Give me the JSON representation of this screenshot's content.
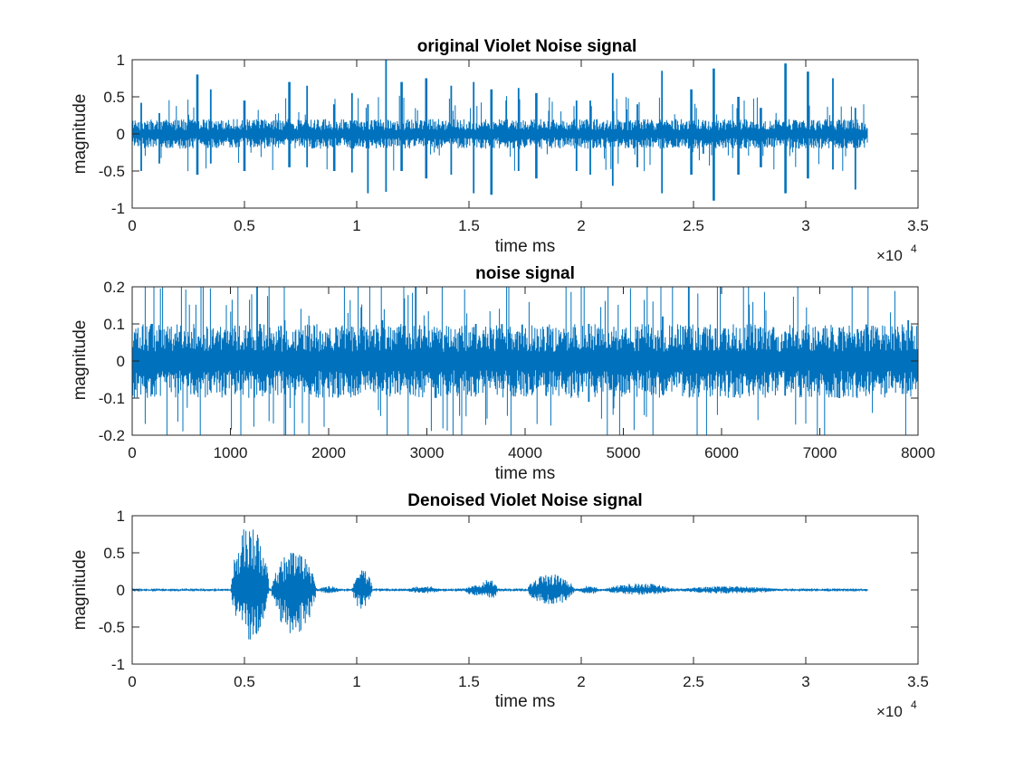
{
  "figure": {
    "line_color": "#0072bd",
    "background": "#ffffff"
  },
  "chart_data": [
    {
      "type": "line",
      "title": "original Violet Noise signal",
      "xlabel": "time ms",
      "ylabel": "magnitude",
      "xlim": [
        0,
        35000
      ],
      "ylim": [
        -1,
        1
      ],
      "x_ticks": [
        0,
        5000,
        10000,
        15000,
        20000,
        25000,
        30000,
        35000
      ],
      "x_tick_labels": [
        "0",
        "0.5",
        "1",
        "1.5",
        "2",
        "2.5",
        "3",
        "3.5"
      ],
      "y_ticks": [
        -1,
        -0.5,
        0,
        0.5,
        1
      ],
      "y_tick_labels": [
        "-1",
        "-0.5",
        "0",
        "0.5",
        "1"
      ],
      "x_exponent_label": "×10",
      "x_exponent_power": "4",
      "grid": false,
      "series": [
        {
          "color": "#0072bd",
          "x_range": [
            0,
            32768
          ],
          "baseline_amplitude": 0.2,
          "peaks": [
            [
              400,
              0.42,
              -0.5
            ],
            [
              1200,
              0.28,
              -0.4
            ],
            [
              2900,
              0.8,
              -0.55
            ],
            [
              3500,
              0.6,
              -0.4
            ],
            [
              5000,
              0.45,
              -0.5
            ],
            [
              7000,
              0.7,
              -0.45
            ],
            [
              7800,
              0.65,
              -0.45
            ],
            [
              9000,
              0.4,
              -0.5
            ],
            [
              9800,
              0.55,
              -0.52
            ],
            [
              10500,
              0.4,
              -0.8
            ],
            [
              11300,
              1.0,
              -0.78
            ],
            [
              12000,
              0.7,
              -0.5
            ],
            [
              13100,
              0.75,
              -0.6
            ],
            [
              14200,
              0.65,
              -0.55
            ],
            [
              15200,
              0.7,
              -0.8
            ],
            [
              16000,
              0.6,
              -0.82
            ],
            [
              17200,
              0.62,
              -0.5
            ],
            [
              18000,
              0.55,
              -0.6
            ],
            [
              19800,
              0.45,
              -0.5
            ],
            [
              20400,
              0.45,
              -0.55
            ],
            [
              21400,
              0.82,
              -0.7
            ],
            [
              22500,
              0.4,
              -0.45
            ],
            [
              23600,
              0.85,
              -0.8
            ],
            [
              24900,
              0.6,
              -0.55
            ],
            [
              25900,
              0.88,
              -0.9
            ],
            [
              27000,
              0.5,
              -0.55
            ],
            [
              28000,
              0.35,
              -0.45
            ],
            [
              29100,
              0.95,
              -0.8
            ],
            [
              30100,
              0.84,
              -0.6
            ],
            [
              31200,
              0.75,
              -0.48
            ],
            [
              32200,
              0.35,
              -0.75
            ]
          ]
        }
      ]
    },
    {
      "type": "line",
      "title": "noise signal",
      "xlabel": "time ms",
      "ylabel": "magnitude",
      "xlim": [
        0,
        8000
      ],
      "ylim": [
        -0.2,
        0.2
      ],
      "x_ticks": [
        0,
        1000,
        2000,
        3000,
        4000,
        5000,
        6000,
        7000,
        8000
      ],
      "x_tick_labels": [
        "0",
        "1000",
        "2000",
        "3000",
        "4000",
        "5000",
        "6000",
        "7000",
        "8000"
      ],
      "y_ticks": [
        -0.2,
        -0.1,
        0,
        0.1,
        0.2
      ],
      "y_tick_labels": [
        "-0.2",
        "-0.1",
        "0",
        "0.1",
        "0.2"
      ],
      "grid": false,
      "series": [
        {
          "color": "#0072bd",
          "x_range": [
            0,
            8000
          ],
          "baseline_amplitude": 0.1,
          "peaks": [
            [
              200,
              0.1,
              -0.09
            ],
            [
              1300,
              0.1,
              -0.08
            ],
            [
              1550,
              0.11,
              -0.09
            ],
            [
              2550,
              0.11,
              -0.08
            ],
            [
              3500,
              0.1,
              -0.09
            ],
            [
              4650,
              0.1,
              -0.11
            ],
            [
              5400,
              0.12,
              -0.09
            ],
            [
              7200,
              0.09,
              -0.1
            ],
            [
              7900,
              0.11,
              -0.08
            ]
          ]
        }
      ]
    },
    {
      "type": "line",
      "title": "Denoised Violet Noise signal",
      "xlabel": "time ms",
      "ylabel": "magnitude",
      "xlim": [
        0,
        35000
      ],
      "ylim": [
        -1,
        1
      ],
      "x_ticks": [
        0,
        5000,
        10000,
        15000,
        20000,
        25000,
        30000,
        35000
      ],
      "x_tick_labels": [
        "0",
        "0.5",
        "1",
        "1.5",
        "2",
        "2.5",
        "3",
        "3.5"
      ],
      "y_ticks": [
        -1,
        -0.5,
        0,
        0.5,
        1
      ],
      "y_tick_labels": [
        "-1",
        "-0.5",
        "0",
        "0.5",
        "1"
      ],
      "x_exponent_label": "×10",
      "x_exponent_power": "4",
      "grid": false,
      "series": [
        {
          "color": "#0072bd",
          "x_range": [
            0,
            32768
          ],
          "baseline_amplitude": 0.02,
          "bursts": [
            [
              4400,
              6100,
              0.9,
              -0.68
            ],
            [
              6200,
              8200,
              0.52,
              -0.6
            ],
            [
              8300,
              9300,
              0.05,
              -0.05
            ],
            [
              9800,
              10700,
              0.27,
              -0.27
            ],
            [
              12200,
              13800,
              0.05,
              -0.05
            ],
            [
              14800,
              15900,
              0.06,
              -0.09
            ],
            [
              15500,
              16300,
              0.15,
              -0.15
            ],
            [
              17600,
              19700,
              0.22,
              -0.22
            ],
            [
              19900,
              20800,
              0.06,
              -0.06
            ],
            [
              21000,
              24200,
              0.09,
              -0.07
            ],
            [
              24300,
              29000,
              0.05,
              -0.05
            ]
          ]
        }
      ]
    }
  ]
}
